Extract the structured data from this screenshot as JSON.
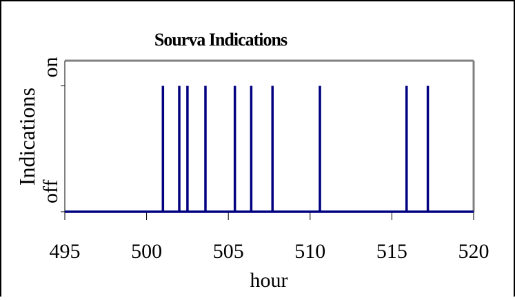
{
  "chart_data": {
    "type": "line",
    "title": "Sourva Indications",
    "x_label": "hour",
    "y_label": "Indications",
    "x": [
      495,
      501,
      501,
      501,
      502,
      502,
      502,
      502.5,
      502.5,
      502.5,
      503.6,
      503.6,
      503.6,
      505.4,
      505.4,
      505.4,
      506.4,
      506.4,
      506.4,
      507.7,
      507.7,
      507.7,
      510.6,
      510.6,
      510.6,
      515.9,
      515.9,
      515.9,
      517.2,
      517.2,
      517.2,
      520
    ],
    "series": [
      {
        "color": "#000080",
        "values": [
          0,
          0,
          1,
          0,
          0,
          1,
          0,
          0,
          1,
          0,
          0,
          1,
          0,
          0,
          1,
          0,
          0,
          1,
          0,
          0,
          1,
          0,
          0,
          1,
          0,
          0,
          1,
          0,
          0,
          1,
          0,
          0
        ]
      }
    ],
    "xlim": [
      495,
      520
    ],
    "xticks": [
      495,
      500,
      505,
      510,
      515,
      520
    ],
    "ylim": [
      0,
      1.2
    ],
    "yticks": [
      {
        "value": 0,
        "label": "off"
      },
      {
        "value": 1,
        "label": "on"
      }
    ]
  }
}
